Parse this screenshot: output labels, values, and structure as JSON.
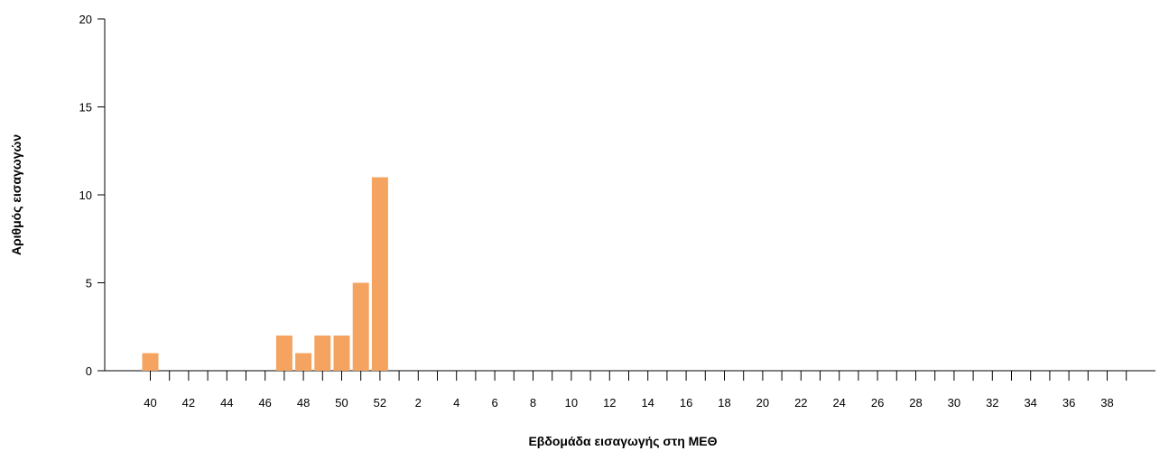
{
  "chart_data": {
    "type": "bar",
    "title": "",
    "xlabel": "Εβδομάδα εισαγωγής στη ΜΕΘ",
    "ylabel": "Αριθμός εισαγωγών",
    "ylim": [
      0,
      20
    ],
    "y_ticks": [
      0,
      5,
      10,
      15,
      20
    ],
    "grid": false,
    "bar_color": "#F4A460",
    "categories": [
      "40",
      "41",
      "42",
      "43",
      "44",
      "45",
      "46",
      "47",
      "48",
      "49",
      "50",
      "51",
      "52",
      "1",
      "2",
      "3",
      "4",
      "5",
      "6",
      "7",
      "8",
      "9",
      "10",
      "11",
      "12",
      "13",
      "14",
      "15",
      "16",
      "17",
      "18",
      "19",
      "20",
      "21",
      "22",
      "23",
      "24",
      "25",
      "26",
      "27",
      "28",
      "29",
      "30",
      "31",
      "32",
      "33",
      "34",
      "35",
      "36",
      "37",
      "38",
      "39"
    ],
    "values": [
      1,
      0,
      0,
      0,
      0,
      0,
      0,
      2,
      1,
      2,
      2,
      5,
      11,
      0,
      0,
      0,
      0,
      0,
      0,
      0,
      0,
      0,
      0,
      0,
      0,
      0,
      0,
      0,
      0,
      0,
      0,
      0,
      0,
      0,
      0,
      0,
      0,
      0,
      0,
      0,
      0,
      0,
      0,
      0,
      0,
      0,
      0,
      0,
      0,
      0,
      0,
      0
    ],
    "x_tick_labels": [
      "40",
      "42",
      "44",
      "46",
      "48",
      "50",
      "52",
      "2",
      "4",
      "6",
      "8",
      "10",
      "12",
      "14",
      "16",
      "18",
      "20",
      "22",
      "24",
      "26",
      "28",
      "30",
      "32",
      "34",
      "36",
      "38"
    ]
  }
}
